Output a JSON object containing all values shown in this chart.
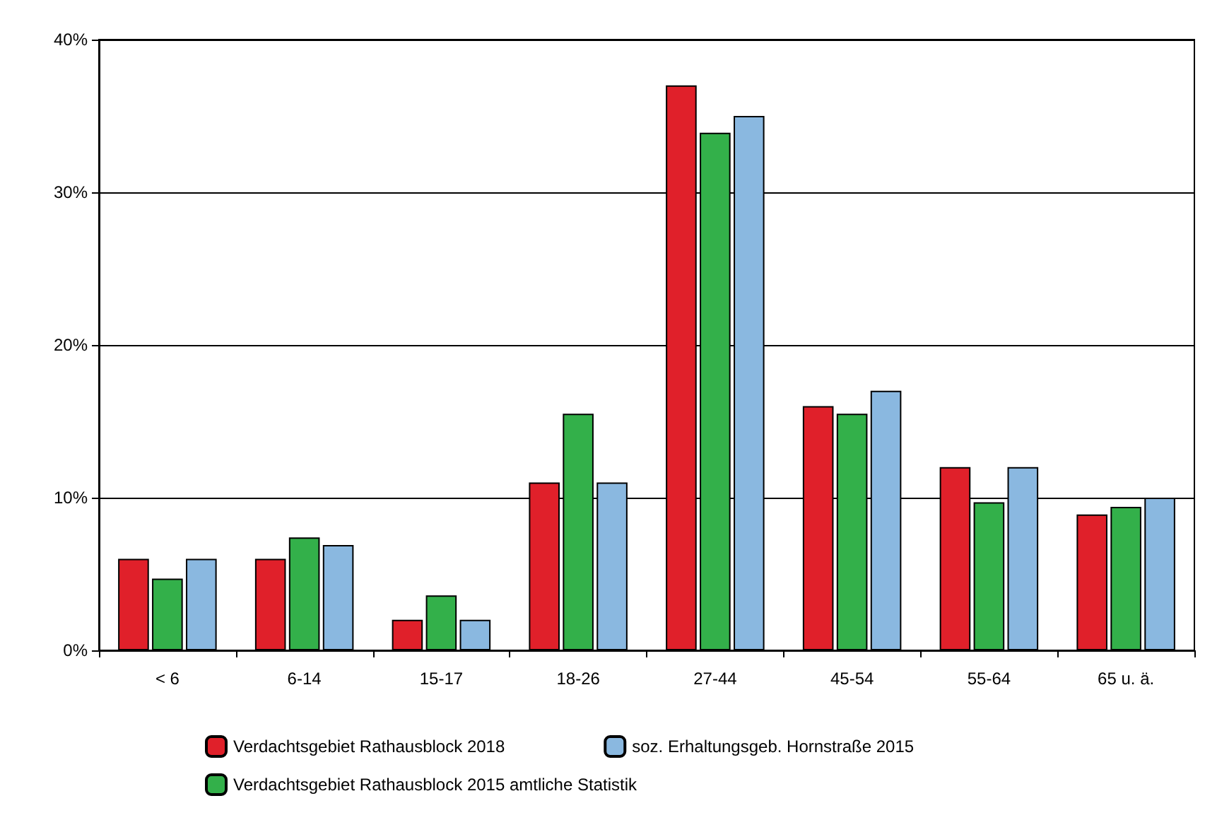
{
  "chart_data": {
    "type": "bar",
    "categories": [
      "< 6",
      "6-14",
      "15-17",
      "18-26",
      "27-44",
      "45-54",
      "55-64",
      "65 u. ä."
    ],
    "series": [
      {
        "name": "Verdachtsgebiet Rathausblock 2018",
        "color": "#e0202a",
        "values": [
          6,
          6,
          2,
          11,
          37,
          16,
          12,
          8.9
        ]
      },
      {
        "name": "Verdachtsgebiet Rathausblock 2015 amtliche Statistik",
        "color": "#33b04a",
        "values": [
          4.7,
          7.4,
          3.6,
          15.5,
          33.9,
          15.5,
          9.7,
          9.4
        ]
      },
      {
        "name": "soz. Erhaltungsgeb. Hornstraße 2015",
        "color": "#8ab8e0",
        "values": [
          6,
          6.9,
          2,
          11,
          35,
          17,
          12,
          10
        ]
      }
    ],
    "ylim": [
      0,
      40
    ],
    "yticks": [
      {
        "value": 0,
        "label": "0%"
      },
      {
        "value": 10,
        "label": "10%"
      },
      {
        "value": 20,
        "label": "20%"
      },
      {
        "value": 30,
        "label": "30%"
      },
      {
        "value": 40,
        "label": "40%"
      }
    ],
    "grid": "y",
    "legend": "bottom"
  }
}
